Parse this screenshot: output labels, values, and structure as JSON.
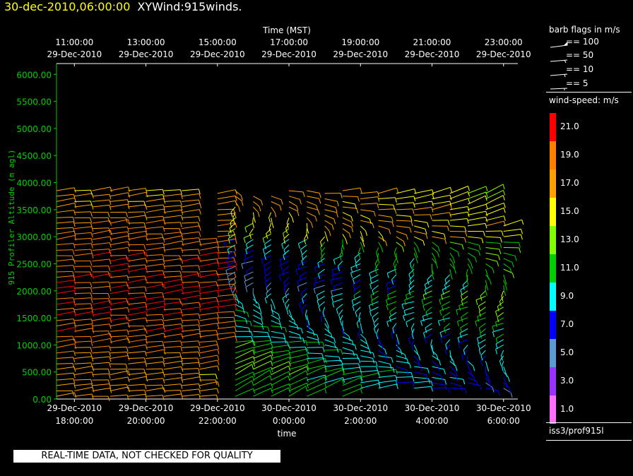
{
  "title": {
    "timestamp": "30-dec-2010,06:00:00",
    "name": "XYWind:915winds."
  },
  "notice": "REAL-TIME DATA, NOT CHECKED FOR QUALITY",
  "panel": {
    "barb_title": "barb flags in m/s",
    "barb_items": [
      "== 100",
      "== 50",
      "== 10",
      "== 5"
    ],
    "speed_title": "wind-speed: m/s",
    "scale": [
      {
        "value": "21.0",
        "color": "#ff0000"
      },
      {
        "value": "19.0",
        "color": "#ff8000"
      },
      {
        "value": "17.0",
        "color": "#ffa000"
      },
      {
        "value": "15.0",
        "color": "#ffff00"
      },
      {
        "value": "13.0",
        "color": "#80ff00"
      },
      {
        "value": "11.0",
        "color": "#00d000"
      },
      {
        "value": "9.0",
        "color": "#00ffff"
      },
      {
        "value": "7.0",
        "color": "#0000ff"
      },
      {
        "value": "5.0",
        "color": "#5b9bd5"
      },
      {
        "value": "3.0",
        "color": "#9b30ff"
      },
      {
        "value": "1.0",
        "color": "#ff6eff"
      }
    ],
    "source": "iss3/prof915l"
  },
  "chart_data": {
    "type": "wind-barb time-height",
    "top_axis_title": "Time (MST)",
    "top_ticks": [
      {
        "time": "11:00:00",
        "date": "29-Dec-2010"
      },
      {
        "time": "13:00:00",
        "date": "29-Dec-2010"
      },
      {
        "time": "15:00:00",
        "date": "29-Dec-2010"
      },
      {
        "time": "17:00:00",
        "date": "29-Dec-2010"
      },
      {
        "time": "19:00:00",
        "date": "29-Dec-2010"
      },
      {
        "time": "21:00:00",
        "date": "29-Dec-2010"
      },
      {
        "time": "23:00:00",
        "date": "29-Dec-2010"
      }
    ],
    "bottom_axis_title": "time",
    "bottom_ticks": [
      {
        "date": "29-Dec-2010",
        "time": "18:00:00"
      },
      {
        "date": "29-Dec-2010",
        "time": "20:00:00"
      },
      {
        "date": "29-Dec-2010",
        "time": "22:00:00"
      },
      {
        "date": "30-Dec-2010",
        "time": "0:00:00"
      },
      {
        "date": "30-Dec-2010",
        "time": "2:00:00"
      },
      {
        "date": "30-Dec-2010",
        "time": "4:00:00"
      },
      {
        "date": "30-Dec-2010",
        "time": "6:00:00"
      }
    ],
    "ylabel": "915 Profiler Altitude (m agl)",
    "ylim": [
      0,
      6200
    ],
    "yticks": [
      "0.00",
      "500.00",
      "1000.00",
      "1500.00",
      "2000.00",
      "2500.00",
      "3000.00",
      "3500.00",
      "4000.00",
      "4500.00",
      "5000.00",
      "5500.00",
      "6000.00"
    ],
    "profiles_utc_hours": [
      17.5,
      18,
      18.5,
      19,
      19.5,
      20,
      20.5,
      21,
      21.5,
      22,
      22.5,
      23,
      23.5,
      24,
      24.5,
      25,
      25.5,
      26,
      26.5,
      27,
      27.5,
      28,
      28.5,
      29,
      29.5,
      30
    ],
    "profile_top_m": [
      3850,
      3850,
      3850,
      3850,
      3850,
      3850,
      3850,
      3850,
      3000,
      3800,
      3850,
      3800,
      3800,
      3850,
      3850,
      3800,
      3850,
      3850,
      3850,
      3850,
      3850,
      3850,
      3850,
      3850,
      3850,
      3200
    ],
    "profile_bottom_m": [
      0,
      0,
      0,
      0,
      0,
      0,
      0,
      0,
      0,
      1100,
      0,
      0,
      0,
      0,
      0,
      200,
      0,
      200,
      200,
      300,
      200,
      200,
      200,
      300,
      200,
      200
    ],
    "level_step_m": 100
  }
}
